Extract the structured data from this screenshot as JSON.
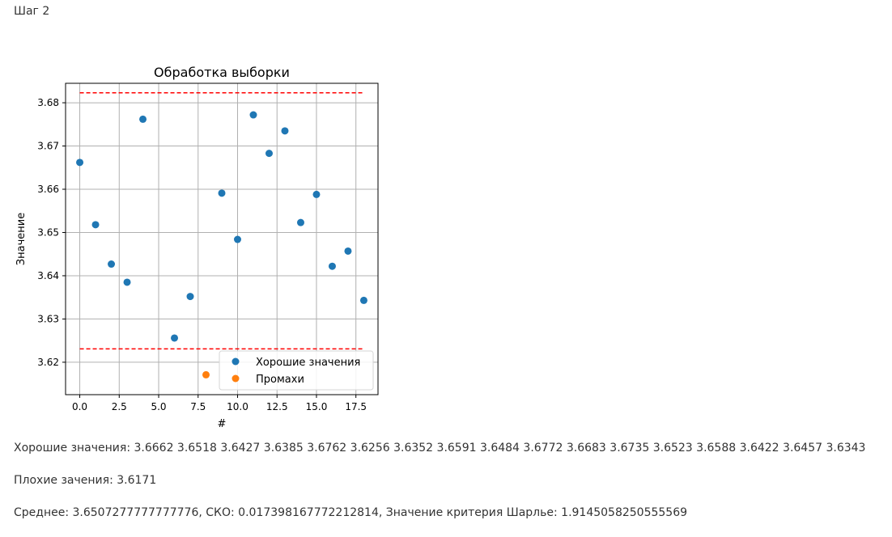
{
  "page": {
    "step_label": "Шаг 2",
    "good_values_line": "Хорошие значения: 3.6662 3.6518 3.6427 3.6385 3.6762 3.6256 3.6352 3.6591 3.6484 3.6772 3.6683 3.6735 3.6523 3.6588 3.6422 3.6457 3.6343",
    "bad_values_line": "Плохие зачения: 3.6171",
    "stats_line": "Среднее: 3.6507277777777776, СКО: 0.017398167772212814, Значение критерия Шарлье: 1.9145058250555569"
  },
  "chart_data": {
    "type": "scatter",
    "title": "Обработка выборки",
    "xlabel": "#",
    "ylabel": "Значение",
    "xlim": [
      -0.9,
      18.9
    ],
    "ylim": [
      3.6125,
      3.6845
    ],
    "xticks": [
      0,
      2.5,
      5,
      7.5,
      10,
      12.5,
      15,
      17.5
    ],
    "xtick_labels": [
      "0.0",
      "2.5",
      "5.0",
      "7.5",
      "10.0",
      "12.5",
      "15.0",
      "17.5"
    ],
    "yticks": [
      3.62,
      3.63,
      3.64,
      3.65,
      3.66,
      3.67,
      3.68
    ],
    "ytick_labels": [
      "3.62",
      "3.63",
      "3.64",
      "3.65",
      "3.66",
      "3.67",
      "3.68"
    ],
    "grid": true,
    "legend_position": "lower-right",
    "series": [
      {
        "name": "Хорошие значения",
        "color": "#1f77b4",
        "x": [
          0,
          1,
          2,
          3,
          4,
          6,
          7,
          9,
          10,
          11,
          12,
          13,
          14,
          15,
          16,
          17,
          18
        ],
        "y": [
          3.6662,
          3.6518,
          3.6427,
          3.6385,
          3.6762,
          3.6256,
          3.6352,
          3.6591,
          3.6484,
          3.6772,
          3.6683,
          3.6735,
          3.6523,
          3.6588,
          3.6422,
          3.6457,
          3.6343
        ]
      },
      {
        "name": "Промахи",
        "color": "#ff7f0e",
        "x": [
          8
        ],
        "y": [
          3.6171
        ]
      }
    ],
    "hlines": [
      {
        "y": 3.6823,
        "x_from": 0,
        "x_to": 18,
        "color": "#ff0000",
        "style": "dashed"
      },
      {
        "y": 3.6231,
        "x_from": 0,
        "x_to": 18,
        "color": "#ff0000",
        "style": "dashed"
      }
    ]
  }
}
